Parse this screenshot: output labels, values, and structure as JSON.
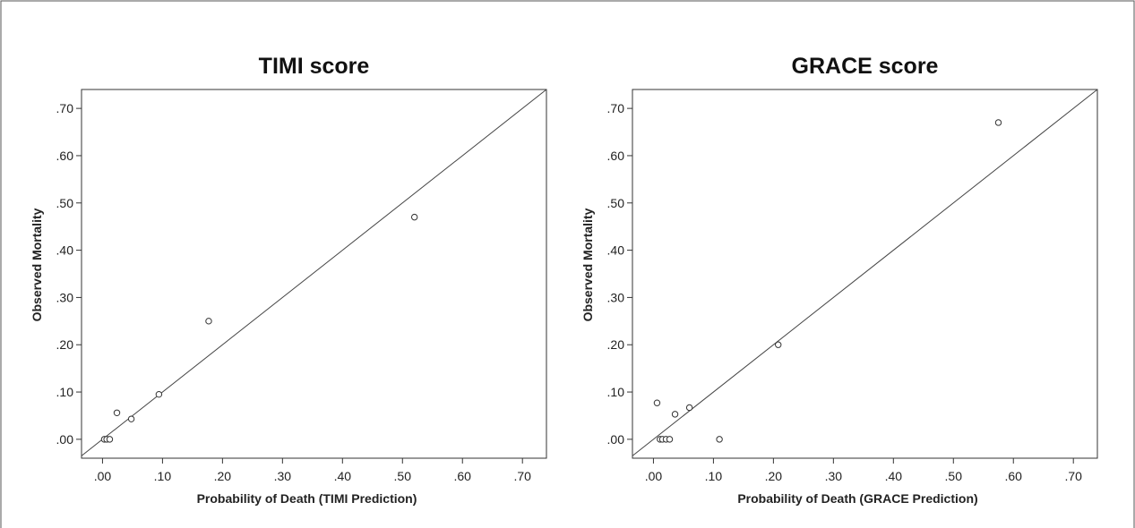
{
  "chart_data": [
    {
      "type": "scatter",
      "title": "TIMI score",
      "xlabel": "Probability of Death (TIMI Prediction)",
      "ylabel": "Observed Mortality",
      "xlim": [
        -0.035,
        0.74
      ],
      "ylim": [
        -0.04,
        0.74
      ],
      "xticks": [
        ".00",
        ".10",
        ".20",
        ".30",
        ".40",
        ".50",
        ".60",
        ".70"
      ],
      "yticks": [
        ".00",
        ".10",
        ".20",
        ".30",
        ".40",
        ".50",
        ".60",
        ".70"
      ],
      "tick_values": [
        0,
        0.1,
        0.2,
        0.3,
        0.4,
        0.5,
        0.6,
        0.7
      ],
      "reference_line": "y = x",
      "grid": false,
      "points": [
        {
          "x": 0.003,
          "y": 0.0
        },
        {
          "x": 0.007,
          "y": 0.0
        },
        {
          "x": 0.012,
          "y": 0.0
        },
        {
          "x": 0.024,
          "y": 0.056
        },
        {
          "x": 0.048,
          "y": 0.043
        },
        {
          "x": 0.094,
          "y": 0.095
        },
        {
          "x": 0.177,
          "y": 0.25
        },
        {
          "x": 0.52,
          "y": 0.47
        }
      ]
    },
    {
      "type": "scatter",
      "title": "GRACE score",
      "xlabel": "Probability of Death (GRACE Prediction)",
      "ylabel": "Observed Mortality",
      "xlim": [
        -0.035,
        0.74
      ],
      "ylim": [
        -0.04,
        0.74
      ],
      "xticks": [
        ".00",
        ".10",
        ".20",
        ".30",
        ".40",
        ".50",
        ".60",
        ".70"
      ],
      "yticks": [
        ".00",
        ".10",
        ".20",
        ".30",
        ".40",
        ".50",
        ".60",
        ".70"
      ],
      "tick_values": [
        0,
        0.1,
        0.2,
        0.3,
        0.4,
        0.5,
        0.6,
        0.7
      ],
      "reference_line": "y = x",
      "grid": false,
      "points": [
        {
          "x": 0.006,
          "y": 0.077
        },
        {
          "x": 0.011,
          "y": 0.0
        },
        {
          "x": 0.015,
          "y": 0.0
        },
        {
          "x": 0.021,
          "y": 0.0
        },
        {
          "x": 0.027,
          "y": 0.0
        },
        {
          "x": 0.036,
          "y": 0.053
        },
        {
          "x": 0.06,
          "y": 0.067
        },
        {
          "x": 0.11,
          "y": 0.0
        },
        {
          "x": 0.208,
          "y": 0.2
        },
        {
          "x": 0.575,
          "y": 0.67
        }
      ]
    }
  ]
}
